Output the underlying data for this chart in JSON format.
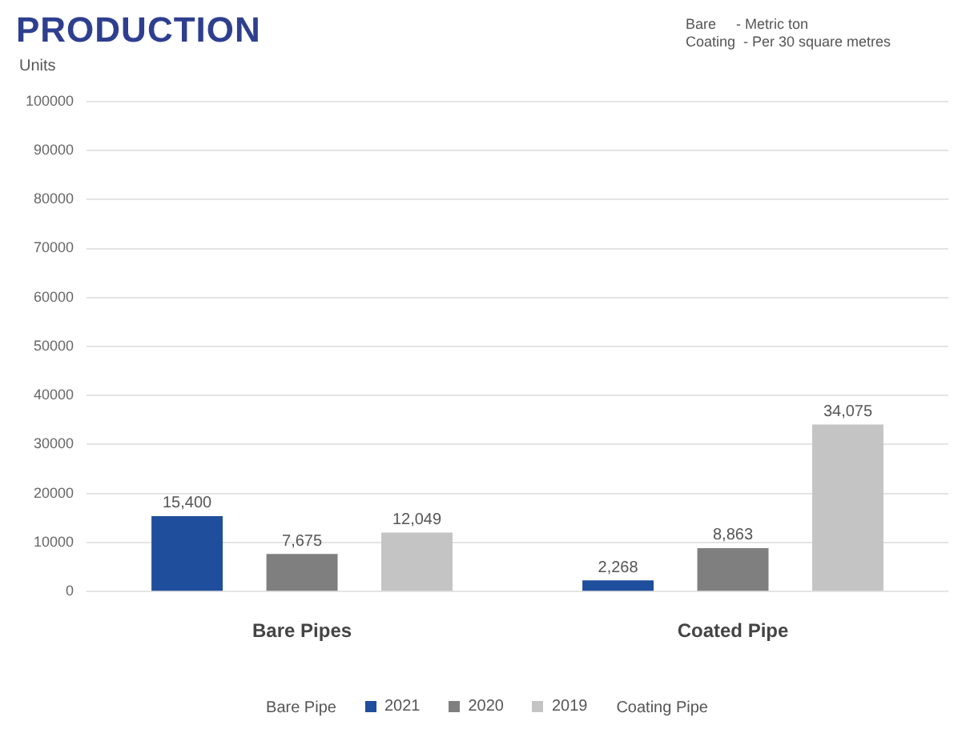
{
  "chart_data": {
    "type": "bar",
    "title": "PRODUCTION",
    "ylabel": "Units",
    "annotations": [
      "Bare     - Metric ton",
      "Coating  - Per 30 square metres",
      "Bare Pipe",
      "Coating Pipe"
    ],
    "categories": [
      "Bare Pipes",
      "Coated Pipe"
    ],
    "series": [
      {
        "name": "2021",
        "color": "#1f4e9c",
        "values": [
          15400,
          2268
        ],
        "value_labels": [
          "15,400",
          "2,268"
        ]
      },
      {
        "name": "2020",
        "color": "#7f7f7f",
        "values": [
          7675,
          8863
        ],
        "value_labels": [
          "7,675",
          "8,863"
        ]
      },
      {
        "name": "2019",
        "color": "#c4c4c4",
        "values": [
          12049,
          34075
        ],
        "value_labels": [
          "12,049",
          "34,075"
        ]
      }
    ],
    "ylim": [
      0,
      100000
    ],
    "yticks": [
      0,
      10000,
      20000,
      30000,
      40000,
      50000,
      60000,
      70000,
      80000,
      90000,
      100000
    ],
    "grid": "y",
    "legend": "bottom"
  }
}
